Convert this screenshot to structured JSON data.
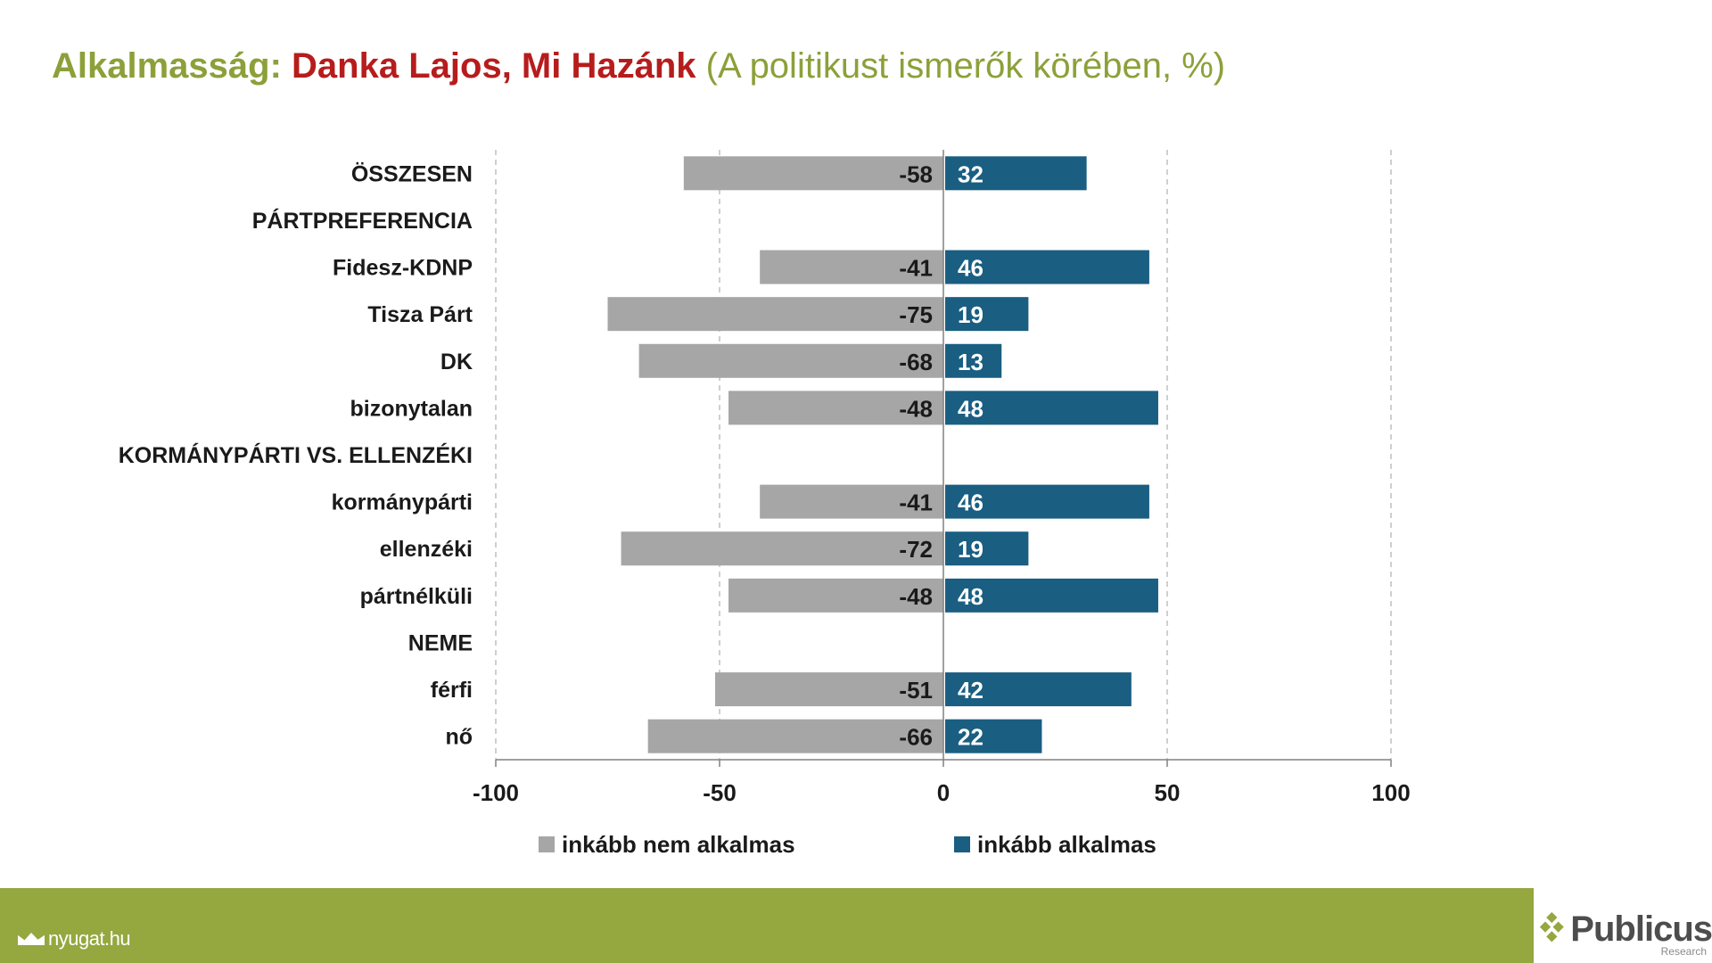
{
  "header": {
    "title_part1": "Alkalmasság:",
    "title_part2": "Danka Lajos, Mi Hazánk",
    "title_part3": "(A politikust ismerők körében, %)"
  },
  "footer": {
    "source": "nyugat.hu",
    "logo_name": "Publicus",
    "logo_sub": "Research",
    "bar_color": "#95a73f"
  },
  "chart_data": {
    "type": "bar",
    "orientation": "horizontal",
    "stacked": "diverging",
    "categories": [
      "ÖSSZESEN",
      "PÁRTPREFERENCIA",
      "Fidesz-KDNP",
      "Tisza Párt",
      "DK",
      "bizonytalan",
      "KORMÁNYPÁRTI VS. ELLENZÉKI",
      "kormánypárti",
      "ellenzéki",
      "pártnélküli",
      "NEME",
      "férfi",
      "nő"
    ],
    "series": [
      {
        "name": "inkább nem alkalmas",
        "color": "#a6a6a6",
        "values": [
          -58,
          null,
          -41,
          -75,
          -68,
          -48,
          null,
          -41,
          -72,
          -48,
          null,
          -51,
          -66
        ]
      },
      {
        "name": "inkább alkalmas",
        "color": "#1a5e82",
        "values": [
          32,
          null,
          46,
          19,
          13,
          48,
          null,
          46,
          19,
          48,
          null,
          42,
          22
        ]
      }
    ],
    "xlim": [
      -100,
      100
    ],
    "xticks": [
      -100,
      -50,
      0,
      50,
      100
    ],
    "grid": true,
    "legend": "bottom"
  }
}
